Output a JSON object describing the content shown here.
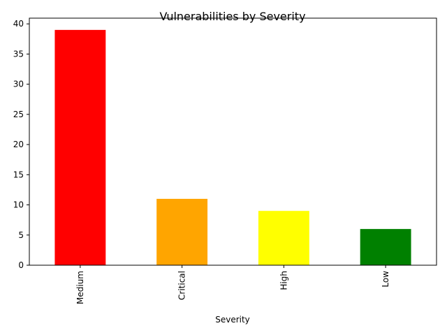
{
  "chart_data": {
    "type": "bar",
    "title": "Vulnerabilities by Severity",
    "xlabel": "Severity",
    "ylabel": "",
    "categories": [
      "Medium",
      "Critical",
      "High",
      "Low"
    ],
    "values": [
      39,
      11,
      9,
      6
    ],
    "colors": [
      "#ff0000",
      "#ffa500",
      "#ffff00",
      "#008000"
    ],
    "ylim": [
      0,
      40.95
    ],
    "yticks": [
      0,
      5,
      10,
      15,
      20,
      25,
      30,
      35,
      40
    ],
    "grid": false,
    "legend": "none"
  }
}
